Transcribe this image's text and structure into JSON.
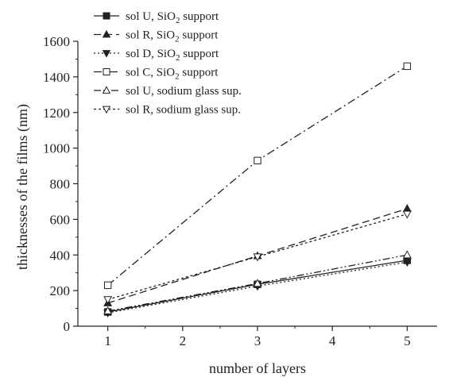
{
  "chart_data": {
    "type": "line",
    "xlabel": "number of layers",
    "ylabel": "thicknesses of the films (nm)",
    "xlim": [
      0.6,
      5.4
    ],
    "ylim": [
      0,
      1600
    ],
    "xticks": [
      1,
      2,
      3,
      4,
      5
    ],
    "yticks": [
      0,
      200,
      400,
      600,
      800,
      1000,
      1200,
      1400,
      1600
    ],
    "grid": false,
    "legend_position": "top-left",
    "series": [
      {
        "name": "sol U, SiO₂ support",
        "legend_main": "sol U, SiO",
        "legend_sub": "2",
        "legend_tail": " support",
        "marker": "square-filled",
        "dash": "none",
        "x": [
          1,
          3,
          5
        ],
        "y": [
          80,
          235,
          370
        ]
      },
      {
        "name": "sol R, SiO₂ support",
        "legend_main": "sol R, SiO",
        "legend_sub": "2",
        "legend_tail": " support",
        "marker": "triangle-up-filled",
        "dash": "dash",
        "x": [
          1,
          3,
          5
        ],
        "y": [
          130,
          395,
          660
        ]
      },
      {
        "name": "sol D, SiO₂ support",
        "legend_main": "sol D, SiO",
        "legend_sub": "2",
        "legend_tail": " support",
        "marker": "triangle-down-filled",
        "dash": "dot",
        "x": [
          1,
          3,
          5
        ],
        "y": [
          75,
          225,
          360
        ]
      },
      {
        "name": "sol C, SiO₂ support",
        "legend_main": "sol C, SiO",
        "legend_sub": "2",
        "legend_tail": " support",
        "marker": "square-open",
        "dash": "dashdot",
        "x": [
          1,
          3,
          5
        ],
        "y": [
          230,
          930,
          1460
        ]
      },
      {
        "name": "sol U, sodium glass sup.",
        "legend_main": "sol U, sodium glass sup.",
        "legend_sub": "",
        "legend_tail": "",
        "marker": "triangle-up-open",
        "dash": "dashdotdot",
        "x": [
          1,
          3,
          5
        ],
        "y": [
          85,
          240,
          400
        ]
      },
      {
        "name": "sol R, sodium glass sup.",
        "legend_main": "sol R, sodium glass sup.",
        "legend_sub": "",
        "legend_tail": "",
        "marker": "triangle-down-open",
        "dash": "shortdot",
        "x": [
          1,
          3,
          5
        ],
        "y": [
          150,
          390,
          630
        ]
      }
    ]
  }
}
